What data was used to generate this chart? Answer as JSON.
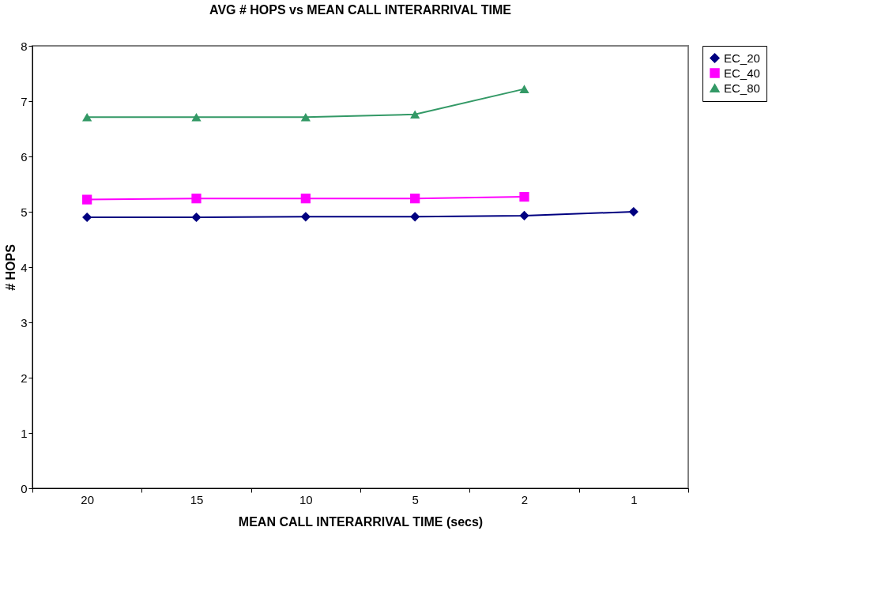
{
  "chart_data": {
    "type": "line",
    "title": "AVG # HOPS vs MEAN CALL INTERARRIVAL TIME",
    "xlabel": "MEAN CALL INTERARRIVAL TIME (secs)",
    "ylabel": "# HOPS",
    "categories": [
      "20",
      "15",
      "10",
      "5",
      "2",
      "1"
    ],
    "series": [
      {
        "name": "EC_20",
        "color": "#000080",
        "marker": "diamond",
        "values": [
          4.9,
          4.9,
          4.91,
          4.91,
          4.93,
          5.0
        ]
      },
      {
        "name": "EC_40",
        "color": "#ff00ff",
        "marker": "square",
        "values": [
          5.22,
          5.24,
          5.24,
          5.24,
          5.27,
          null
        ]
      },
      {
        "name": "EC_80",
        "color": "#339966",
        "marker": "triangle",
        "values": [
          6.71,
          6.71,
          6.71,
          6.76,
          7.22,
          null
        ]
      }
    ],
    "ylim": [
      0,
      8
    ],
    "yticks": [
      0,
      1,
      2,
      3,
      4,
      5,
      6,
      7,
      8
    ],
    "grid": false,
    "legend": "right"
  }
}
